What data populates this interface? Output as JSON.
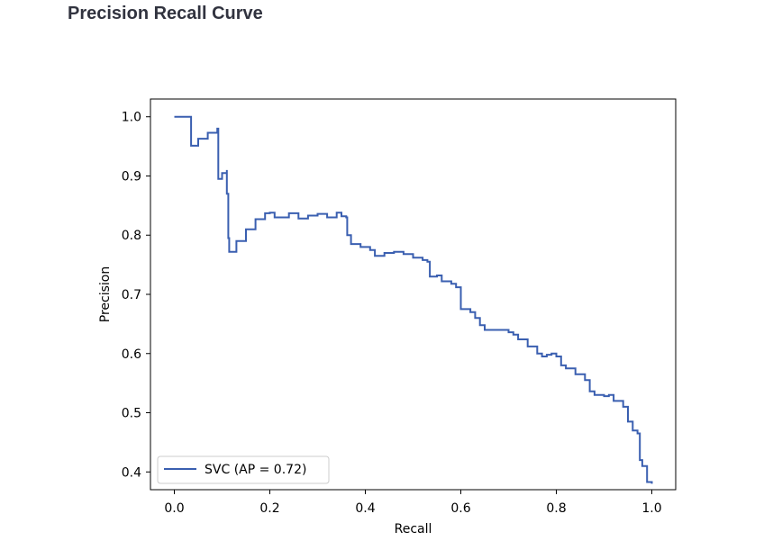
{
  "page": {
    "title": "Precision Recall Curve"
  },
  "colors": {
    "series": "#3a5fb0",
    "axis": "#000000",
    "text": "#000000",
    "title": "#31333f"
  },
  "chart_data": {
    "type": "line",
    "step": true,
    "title": "",
    "xlabel": "Recall",
    "ylabel": "Precision",
    "xlim": [
      -0.05,
      1.05
    ],
    "ylim": [
      0.37,
      1.03
    ],
    "xticks": [
      0.0,
      0.2,
      0.4,
      0.6,
      0.8,
      1.0
    ],
    "xtick_labels": [
      "0.0",
      "0.2",
      "0.4",
      "0.6",
      "0.8",
      "1.0"
    ],
    "yticks": [
      0.4,
      0.5,
      0.6,
      0.7,
      0.8,
      0.9,
      1.0
    ],
    "ytick_labels": [
      "0.4",
      "0.5",
      "0.6",
      "0.7",
      "0.8",
      "0.9",
      "1.0"
    ],
    "grid": false,
    "legend": {
      "position": "lower-left",
      "entries": [
        "SVC (AP = 0.72)"
      ]
    },
    "series": [
      {
        "name": "SVC (AP = 0.72)",
        "points": [
          [
            0.0,
            1.0
          ],
          [
            0.035,
            1.0
          ],
          [
            0.035,
            0.951
          ],
          [
            0.05,
            0.963
          ],
          [
            0.07,
            0.973
          ],
          [
            0.09,
            0.98
          ],
          [
            0.092,
            0.895
          ],
          [
            0.1,
            0.905
          ],
          [
            0.11,
            0.91
          ],
          [
            0.11,
            0.87
          ],
          [
            0.113,
            0.795
          ],
          [
            0.115,
            0.772
          ],
          [
            0.13,
            0.79
          ],
          [
            0.15,
            0.81
          ],
          [
            0.17,
            0.827
          ],
          [
            0.19,
            0.837
          ],
          [
            0.2,
            0.838
          ],
          [
            0.21,
            0.83
          ],
          [
            0.24,
            0.837
          ],
          [
            0.26,
            0.828
          ],
          [
            0.28,
            0.833
          ],
          [
            0.3,
            0.836
          ],
          [
            0.32,
            0.83
          ],
          [
            0.34,
            0.838
          ],
          [
            0.35,
            0.832
          ],
          [
            0.36,
            0.83
          ],
          [
            0.362,
            0.8
          ],
          [
            0.37,
            0.785
          ],
          [
            0.39,
            0.78
          ],
          [
            0.41,
            0.775
          ],
          [
            0.42,
            0.765
          ],
          [
            0.44,
            0.77
          ],
          [
            0.46,
            0.772
          ],
          [
            0.48,
            0.768
          ],
          [
            0.5,
            0.762
          ],
          [
            0.52,
            0.758
          ],
          [
            0.53,
            0.755
          ],
          [
            0.535,
            0.73
          ],
          [
            0.55,
            0.732
          ],
          [
            0.56,
            0.722
          ],
          [
            0.58,
            0.718
          ],
          [
            0.59,
            0.712
          ],
          [
            0.6,
            0.708
          ],
          [
            0.6,
            0.675
          ],
          [
            0.62,
            0.67
          ],
          [
            0.63,
            0.66
          ],
          [
            0.64,
            0.648
          ],
          [
            0.65,
            0.64
          ],
          [
            0.7,
            0.636
          ],
          [
            0.71,
            0.632
          ],
          [
            0.72,
            0.624
          ],
          [
            0.74,
            0.612
          ],
          [
            0.76,
            0.6
          ],
          [
            0.77,
            0.595
          ],
          [
            0.78,
            0.598
          ],
          [
            0.79,
            0.6
          ],
          [
            0.8,
            0.595
          ],
          [
            0.81,
            0.58
          ],
          [
            0.82,
            0.575
          ],
          [
            0.84,
            0.565
          ],
          [
            0.86,
            0.555
          ],
          [
            0.87,
            0.536
          ],
          [
            0.88,
            0.53
          ],
          [
            0.9,
            0.528
          ],
          [
            0.91,
            0.53
          ],
          [
            0.92,
            0.52
          ],
          [
            0.94,
            0.51
          ],
          [
            0.95,
            0.485
          ],
          [
            0.96,
            0.47
          ],
          [
            0.97,
            0.465
          ],
          [
            0.975,
            0.42
          ],
          [
            0.98,
            0.41
          ],
          [
            0.99,
            0.41
          ],
          [
            0.99,
            0.383
          ],
          [
            1.0,
            0.38
          ]
        ]
      }
    ]
  }
}
